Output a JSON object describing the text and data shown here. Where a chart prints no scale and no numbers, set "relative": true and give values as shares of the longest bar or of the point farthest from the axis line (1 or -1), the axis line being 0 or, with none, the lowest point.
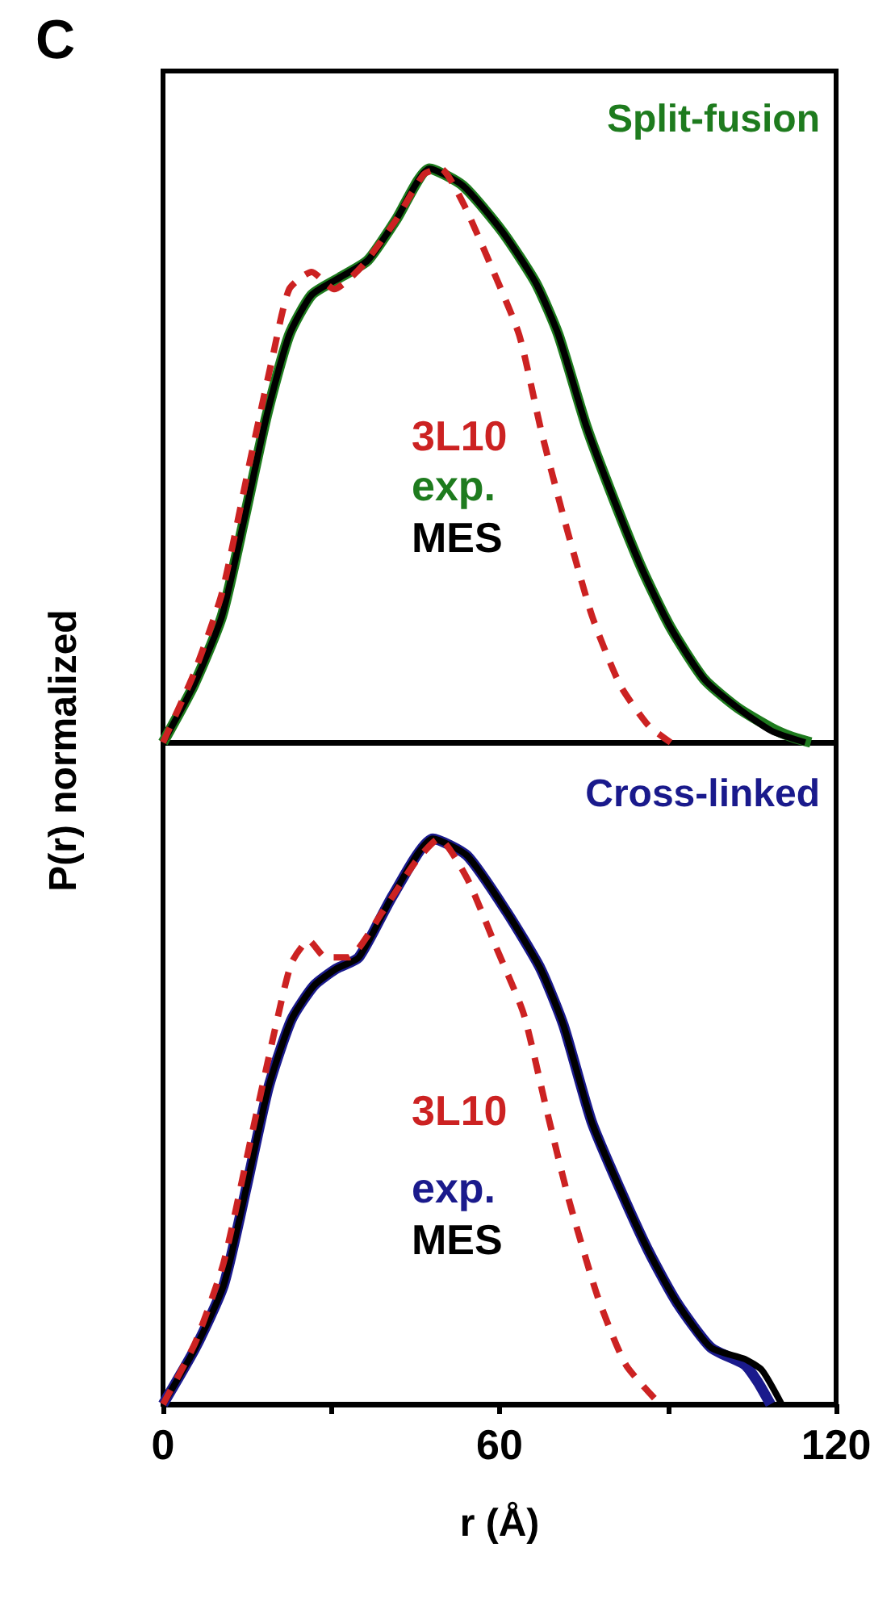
{
  "chart_data": [
    {
      "type": "line",
      "title": "Split-fusion",
      "annotations": [
        "C"
      ],
      "relative": true,
      "xlim": [
        0,
        120
      ],
      "tick_labels": false,
      "marker": "none",
      "series": [
        {
          "name": "exp.",
          "color": "#1e7b1e",
          "line_style": "solid",
          "x": [
            0,
            5.5,
            10.5,
            14.5,
            18.5,
            22.5,
            26.5,
            31.5,
            36.5,
            41.5,
            47.5,
            53.5,
            60.5,
            66.5,
            70.5,
            75.5,
            80.5,
            85.5,
            90.5,
            96.5,
            102.5,
            108.5,
            112,
            115.5
          ],
          "values": [
            0,
            0.1,
            0.22,
            0.39,
            0.57,
            0.71,
            0.78,
            0.81,
            0.84,
            0.91,
            1,
            0.97,
            0.89,
            0.8,
            0.71,
            0.55,
            0.42,
            0.3,
            0.2,
            0.11,
            0.06,
            0.025,
            0.01,
            0
          ]
        },
        {
          "name": "MES",
          "color": "#000000",
          "line_style": "solid",
          "x": [
            0,
            5.5,
            10.5,
            14.5,
            18.5,
            22.5,
            26.5,
            31.5,
            36.5,
            41.5,
            47.5,
            53.5,
            60.5,
            66.5,
            70.5,
            75.5,
            80.5,
            85.5,
            90.5,
            96.5,
            102.5,
            108.5,
            114.5
          ],
          "values": [
            0,
            0.1,
            0.22,
            0.39,
            0.57,
            0.71,
            0.78,
            0.81,
            0.84,
            0.91,
            1,
            0.97,
            0.89,
            0.8,
            0.71,
            0.55,
            0.42,
            0.3,
            0.2,
            0.11,
            0.06,
            0.02,
            0
          ]
        },
        {
          "name": "3L10",
          "color": "#cc2222",
          "line_style": "dashed",
          "x": [
            0,
            5.5,
            10.5,
            15.5,
            19.5,
            22.5,
            26.5,
            30.5,
            35.5,
            41.5,
            46.5,
            49.5,
            53.5,
            58.5,
            63.5,
            67.5,
            71.5,
            76.5,
            81.5,
            86.5,
            90.5
          ],
          "values": [
            0,
            0.12,
            0.26,
            0.49,
            0.67,
            0.79,
            0.82,
            0.79,
            0.83,
            0.91,
            0.99,
            1,
            0.94,
            0.83,
            0.71,
            0.54,
            0.39,
            0.22,
            0.1,
            0.03,
            0
          ]
        }
      ]
    },
    {
      "type": "line",
      "title": "Cross-linked",
      "xlabel": "r (Å)",
      "ylabel": "P(r) normalized",
      "relative": true,
      "xlim": [
        0,
        120
      ],
      "xticks": [
        0,
        {
          "value": 30,
          "label": null
        },
        60,
        {
          "value": 90,
          "label": null
        },
        120
      ],
      "tick_labels": "x",
      "marker": "none",
      "series": [
        {
          "name": "exp.",
          "color": "#1a1a8c",
          "line_style": "solid",
          "x": [
            0,
            5.8,
            10.8,
            14.8,
            18.8,
            22.9,
            26.9,
            30.9,
            34.9,
            41,
            48.1,
            54.2,
            61.3,
            67.3,
            71.4,
            76.4,
            81.5,
            86.6,
            91.6,
            97.7,
            103.7,
            106,
            108.3
          ],
          "values": [
            0,
            0.1,
            0.21,
            0.38,
            0.56,
            0.68,
            0.74,
            0.77,
            0.79,
            0.9,
            1,
            0.97,
            0.87,
            0.77,
            0.67,
            0.5,
            0.38,
            0.27,
            0.18,
            0.1,
            0.07,
            0.04,
            0
          ]
        },
        {
          "name": "MES",
          "color": "#000000",
          "line_style": "solid",
          "x": [
            0,
            5.8,
            10.8,
            14.8,
            18.8,
            22.9,
            26.9,
            30.9,
            34.9,
            41,
            48.1,
            54.2,
            61.3,
            67.3,
            71.4,
            76.4,
            81.5,
            86.6,
            91.6,
            97.7,
            103.7,
            106.8,
            110.3
          ],
          "values": [
            0,
            0.1,
            0.21,
            0.38,
            0.56,
            0.68,
            0.74,
            0.77,
            0.79,
            0.9,
            1,
            0.97,
            0.87,
            0.77,
            0.67,
            0.5,
            0.38,
            0.27,
            0.18,
            0.1,
            0.08,
            0.06,
            0
          ]
        },
        {
          "name": "3L10",
          "color": "#cc2222",
          "line_style": "dashed",
          "x": [
            0,
            5.8,
            10.8,
            15.9,
            19.9,
            22.9,
            26,
            29,
            33,
            39.1,
            45.1,
            49.2,
            54.2,
            59.3,
            64.3,
            68.4,
            72.4,
            77.5,
            82.5,
            88.6
          ],
          "values": [
            0,
            0.11,
            0.25,
            0.48,
            0.66,
            0.78,
            0.82,
            0.79,
            0.79,
            0.87,
            0.96,
            1,
            0.93,
            0.81,
            0.69,
            0.52,
            0.36,
            0.19,
            0.07,
            0
          ]
        }
      ]
    }
  ]
}
